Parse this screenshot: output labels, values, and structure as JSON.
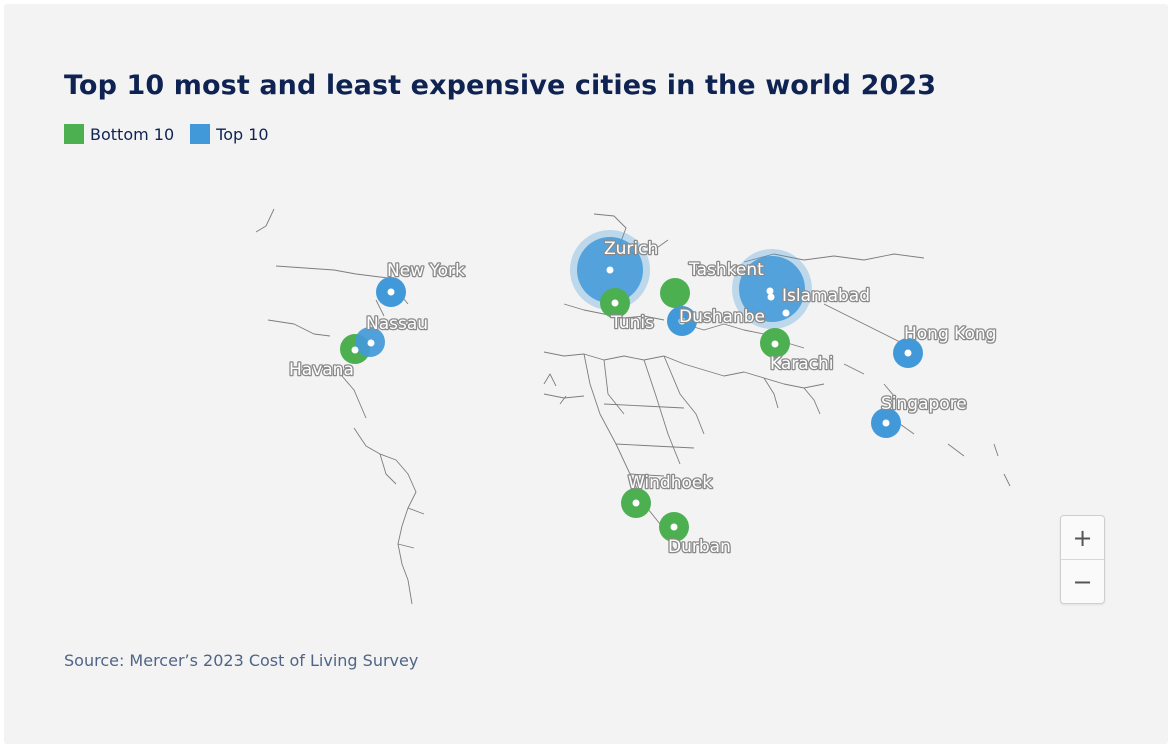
{
  "title": "Top 10 most and least expensive cities in the world 2023",
  "legend": [
    {
      "label": "Bottom 10",
      "color": "#4caf50"
    },
    {
      "label": "Top 10",
      "color": "#4299d9"
    }
  ],
  "source": "Source: Mercer’s 2023 Cost of Living Survey",
  "zoom": {
    "in": "+",
    "out": "−"
  },
  "cities": [
    {
      "name": "New York",
      "group": "Top 10"
    },
    {
      "name": "Nassau",
      "group": "Top 10"
    },
    {
      "name": "Havana",
      "group": "Bottom 10"
    },
    {
      "name": "Zurich",
      "group": "Top 10"
    },
    {
      "name": "Tunis",
      "group": "Bottom 10"
    },
    {
      "name": "Tashkent",
      "group": "Bottom 10"
    },
    {
      "name": "Dushanbe",
      "group": "Bottom 10"
    },
    {
      "name": "Islamabad",
      "group": "Bottom 10"
    },
    {
      "name": "Karachi",
      "group": "Bottom 10"
    },
    {
      "name": "Hong Kong",
      "group": "Top 10"
    },
    {
      "name": "Singapore",
      "group": "Top 10"
    },
    {
      "name": "Windhoek",
      "group": "Bottom 10"
    },
    {
      "name": "Durban",
      "group": "Bottom 10"
    }
  ]
}
